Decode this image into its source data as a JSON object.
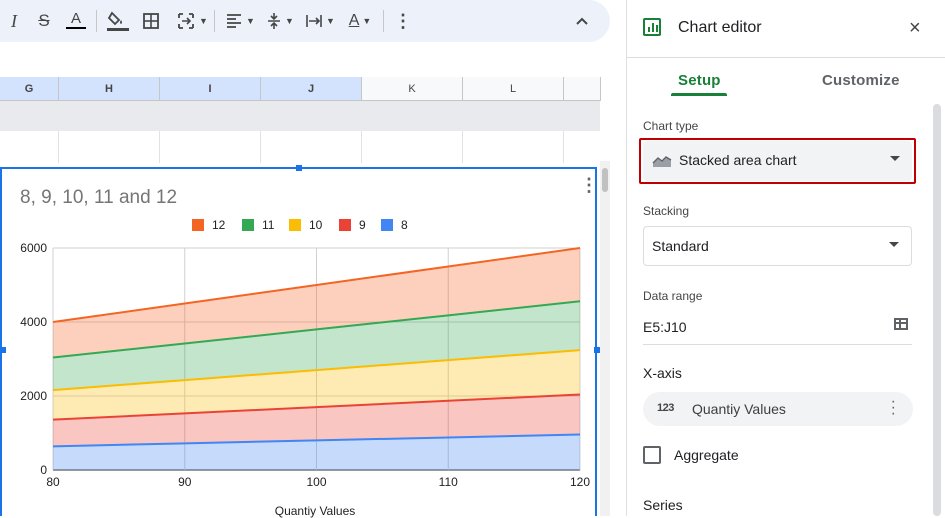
{
  "toolbar": {
    "icons": [
      "italic-icon",
      "strikethrough-icon",
      "text-color-icon",
      "fill-color-icon",
      "borders-icon",
      "merge-cells-icon",
      "align-icon",
      "valign-icon",
      "wrap-icon",
      "rotate-icon",
      "more-icon",
      "collapse-icon"
    ],
    "italic": "I",
    "strike": "S",
    "text_color": "A",
    "more": "⋮",
    "collapse": "^"
  },
  "sheet": {
    "columns": [
      "G",
      "H",
      "I",
      "J",
      "K",
      "L"
    ]
  },
  "chart": {
    "menu": "⋮",
    "colors": {
      "s12": "#f46524",
      "s11": "#34a853",
      "s10": "#fbbc04",
      "s9": "#ea4335",
      "s8": "#4285f4"
    }
  },
  "chart_data": {
    "type": "area",
    "stacked": true,
    "title": "8, 9, 10, 11 and 12",
    "xlabel": "Quantiy Values",
    "ylabel": "",
    "x": [
      80,
      90,
      100,
      110,
      120
    ],
    "x_ticks": [
      "80",
      "90",
      "100",
      "110",
      "120"
    ],
    "y_ticks": [
      "0",
      "2000",
      "4000",
      "6000"
    ],
    "ylim": [
      0,
      6000
    ],
    "legend_position": "top",
    "series": [
      {
        "name": "8",
        "values": [
          640,
          720,
          800,
          880,
          960
        ]
      },
      {
        "name": "9",
        "values": [
          720,
          810,
          900,
          990,
          1080
        ]
      },
      {
        "name": "10",
        "values": [
          800,
          900,
          1000,
          1100,
          1200
        ]
      },
      {
        "name": "11",
        "values": [
          880,
          990,
          1100,
          1210,
          1320
        ]
      },
      {
        "name": "12",
        "values": [
          960,
          1080,
          1200,
          1320,
          1440
        ]
      }
    ],
    "legend_order": [
      "12",
      "11",
      "10",
      "9",
      "8"
    ]
  },
  "editor": {
    "title": "Chart editor",
    "close": "×",
    "tabs": {
      "setup": "Setup",
      "customize": "Customize"
    },
    "chart_type_label": "Chart type",
    "chart_type_value": "Stacked area chart",
    "stacking_label": "Stacking",
    "stacking_value": "Standard",
    "data_range_label": "Data range",
    "data_range_value": "E5:J10",
    "x_axis_section": "X-axis",
    "x_axis_chip_icon": "123",
    "x_axis_chip_value": "Quantiy Values",
    "aggregate_label": "Aggregate",
    "series_section": "Series"
  }
}
